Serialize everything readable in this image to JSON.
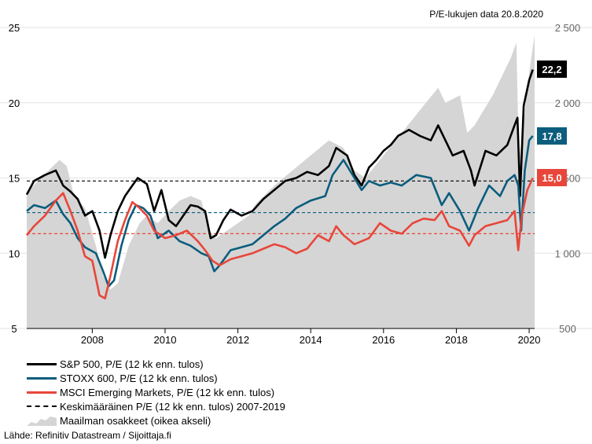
{
  "chart_data": {
    "type": "line",
    "note": "P/E-lukujen data 20.8.2020",
    "source": "Lähde: Refinitiv Datastream / Sijoittaja.fi",
    "x_ticks": [
      "2008",
      "2010",
      "2012",
      "2014",
      "2016",
      "2018",
      "2020"
    ],
    "y_left_ticks": [
      "5",
      "10",
      "15",
      "20",
      "25"
    ],
    "y_right_ticks": [
      "500",
      "1 000",
      "1 500",
      "2 000",
      "2 500"
    ],
    "ylim_left": [
      5,
      25
    ],
    "ylim_right": [
      500,
      2500
    ],
    "x_range": [
      2006.7,
      2020.65
    ],
    "grid": "horizontal",
    "legend_position": "bottom-left",
    "end_labels": [
      "22,2",
      "17,8",
      "15,0"
    ],
    "averages": [
      {
        "series": "S&P 500",
        "value": 14.8,
        "color": "#000000"
      },
      {
        "series": "STOXX 600",
        "value": 12.7,
        "color": "#0b5d7d"
      },
      {
        "series": "MSCI Emerging Markets",
        "value": 11.3,
        "color": "#e8463a"
      }
    ],
    "area": {
      "name": "Maailman osakkeet (oikea akseli)",
      "color": "#d5d5d5",
      "x": [
        2006.7,
        2007.0,
        2007.3,
        2007.6,
        2007.8,
        2008.0,
        2008.3,
        2008.6,
        2008.8,
        2009.0,
        2009.2,
        2009.5,
        2009.8,
        2010.0,
        2010.3,
        2010.6,
        2010.9,
        2011.2,
        2011.5,
        2011.7,
        2011.9,
        2012.2,
        2012.5,
        2012.8,
        2013.0,
        2013.5,
        2014.0,
        2014.5,
        2015.0,
        2015.4,
        2015.7,
        2016.0,
        2016.5,
        2017.0,
        2017.5,
        2018.0,
        2018.2,
        2018.6,
        2018.8,
        2019.0,
        2019.5,
        2020.0,
        2020.15,
        2020.22,
        2020.5,
        2020.65
      ],
      "values": [
        1400,
        1480,
        1550,
        1620,
        1580,
        1380,
        1300,
        1050,
        850,
        760,
        800,
        1050,
        1200,
        1250,
        1200,
        1280,
        1350,
        1380,
        1350,
        1150,
        1100,
        1150,
        1200,
        1250,
        1330,
        1450,
        1550,
        1650,
        1750,
        1700,
        1550,
        1500,
        1650,
        1800,
        1950,
        2100,
        2000,
        2050,
        1800,
        1850,
        2050,
        2300,
        2400,
        1600,
        2200,
        2450
      ]
    },
    "series": [
      {
        "name": "S&P 500, P/E (12 kk enn. tulos)",
        "color": "#000000",
        "x": [
          2006.7,
          2006.9,
          2007.2,
          2007.5,
          2007.7,
          2007.9,
          2008.1,
          2008.3,
          2008.5,
          2008.7,
          2008.85,
          2009.0,
          2009.2,
          2009.4,
          2009.6,
          2009.75,
          2010.0,
          2010.2,
          2010.4,
          2010.6,
          2010.8,
          2011.0,
          2011.2,
          2011.4,
          2011.6,
          2011.75,
          2011.9,
          2012.1,
          2012.3,
          2012.6,
          2012.9,
          2013.2,
          2013.5,
          2013.8,
          2014.1,
          2014.4,
          2014.7,
          2015.0,
          2015.2,
          2015.5,
          2015.7,
          2015.9,
          2016.1,
          2016.3,
          2016.5,
          2016.7,
          2016.9,
          2017.2,
          2017.5,
          2017.8,
          2018.0,
          2018.2,
          2018.4,
          2018.7,
          2018.9,
          2019.0,
          2019.3,
          2019.6,
          2019.9,
          2020.1,
          2020.18,
          2020.25,
          2020.35,
          2020.5,
          2020.6
        ],
        "values": [
          13.9,
          14.8,
          15.2,
          15.5,
          14.5,
          14.1,
          13.6,
          12.5,
          12.8,
          11.5,
          9.7,
          11.2,
          12.8,
          13.8,
          14.5,
          15.0,
          14.6,
          12.8,
          14.2,
          12.2,
          11.8,
          12.5,
          13.2,
          13.1,
          12.8,
          11.0,
          11.2,
          12.2,
          12.9,
          12.5,
          12.8,
          13.6,
          14.2,
          14.8,
          15.0,
          15.4,
          15.2,
          15.8,
          17.0,
          16.5,
          15.2,
          14.5,
          15.7,
          16.2,
          16.8,
          17.2,
          17.8,
          18.2,
          17.8,
          17.5,
          18.5,
          17.5,
          16.5,
          16.8,
          15.5,
          14.5,
          16.8,
          16.5,
          17.2,
          18.5,
          19.0,
          13.8,
          19.8,
          21.5,
          22.2
        ]
      },
      {
        "name": "STOXX 600, P/E (12 kk enn. tulos)",
        "color": "#0b5d7d",
        "x": [
          2006.7,
          2006.9,
          2007.2,
          2007.5,
          2007.7,
          2007.9,
          2008.1,
          2008.3,
          2008.6,
          2008.8,
          2008.95,
          2009.1,
          2009.3,
          2009.5,
          2009.7,
          2009.9,
          2010.1,
          2010.3,
          2010.6,
          2010.9,
          2011.2,
          2011.5,
          2011.7,
          2011.85,
          2012.0,
          2012.3,
          2012.6,
          2012.9,
          2013.2,
          2013.5,
          2013.8,
          2014.1,
          2014.5,
          2014.9,
          2015.1,
          2015.4,
          2015.7,
          2015.9,
          2016.1,
          2016.4,
          2016.7,
          2017.0,
          2017.4,
          2017.8,
          2018.1,
          2018.3,
          2018.6,
          2018.85,
          2019.1,
          2019.4,
          2019.7,
          2019.9,
          2020.1,
          2020.2,
          2020.28,
          2020.38,
          2020.5,
          2020.6
        ],
        "values": [
          12.8,
          13.2,
          13.0,
          13.5,
          12.6,
          12.0,
          11.0,
          10.4,
          10.0,
          8.8,
          7.8,
          8.2,
          10.5,
          12.2,
          13.2,
          13.0,
          12.5,
          11.0,
          11.5,
          10.8,
          10.5,
          10.0,
          9.8,
          8.8,
          9.2,
          10.2,
          10.4,
          10.6,
          11.2,
          11.8,
          12.3,
          13.0,
          13.5,
          13.8,
          15.2,
          16.2,
          15.0,
          14.2,
          14.8,
          14.5,
          14.7,
          14.5,
          15.2,
          15.0,
          13.2,
          14.0,
          12.8,
          11.5,
          13.0,
          14.5,
          13.8,
          14.8,
          15.2,
          14.5,
          11.5,
          15.5,
          17.5,
          17.8
        ]
      },
      {
        "name": "MSCI Emerging Markets, P/E (12 kk enn. tulos)",
        "color": "#e8463a",
        "x": [
          2006.7,
          2006.9,
          2007.2,
          2007.5,
          2007.7,
          2007.9,
          2008.1,
          2008.3,
          2008.5,
          2008.7,
          2008.85,
          2009.0,
          2009.2,
          2009.4,
          2009.6,
          2009.8,
          2010.0,
          2010.2,
          2010.5,
          2010.8,
          2011.1,
          2011.4,
          2011.6,
          2011.8,
          2012.0,
          2012.3,
          2012.6,
          2012.9,
          2013.2,
          2013.5,
          2013.8,
          2014.1,
          2014.4,
          2014.7,
          2015.0,
          2015.2,
          2015.4,
          2015.7,
          2015.9,
          2016.1,
          2016.4,
          2016.7,
          2017.0,
          2017.3,
          2017.6,
          2017.9,
          2018.1,
          2018.3,
          2018.6,
          2018.85,
          2019.0,
          2019.3,
          2019.6,
          2019.9,
          2020.1,
          2020.2,
          2020.3,
          2020.45,
          2020.6
        ],
        "values": [
          11.2,
          11.8,
          12.5,
          13.5,
          14.0,
          12.8,
          11.5,
          9.8,
          9.5,
          7.2,
          7.0,
          8.5,
          10.8,
          12.2,
          13.4,
          13.0,
          12.5,
          11.5,
          11.0,
          11.2,
          11.5,
          10.8,
          10.2,
          9.5,
          9.2,
          9.6,
          9.8,
          10.0,
          10.3,
          10.6,
          10.4,
          10.0,
          10.3,
          11.2,
          10.8,
          11.8,
          11.2,
          10.6,
          10.8,
          11.0,
          12.0,
          11.5,
          11.3,
          12.0,
          12.3,
          12.2,
          12.8,
          11.8,
          11.5,
          10.5,
          11.2,
          11.8,
          12.0,
          12.2,
          12.8,
          10.2,
          12.5,
          14.2,
          15.0
        ]
      }
    ],
    "average_legend": "Keskimääräinen P/E (12 kk enn. tulos) 2007-2019"
  },
  "legend": {
    "items": [
      {
        "label": "S&P 500, P/E (12 kk enn. tulos)"
      },
      {
        "label": "STOXX 600, P/E (12 kk enn. tulos)"
      },
      {
        "label": "MSCI Emerging Markets, P/E (12 kk enn. tulos)"
      },
      {
        "label": "Keskimääräinen P/E (12 kk enn. tulos) 2007-2019"
      },
      {
        "label": "Maailman osakkeet (oikea akseli)"
      }
    ]
  }
}
